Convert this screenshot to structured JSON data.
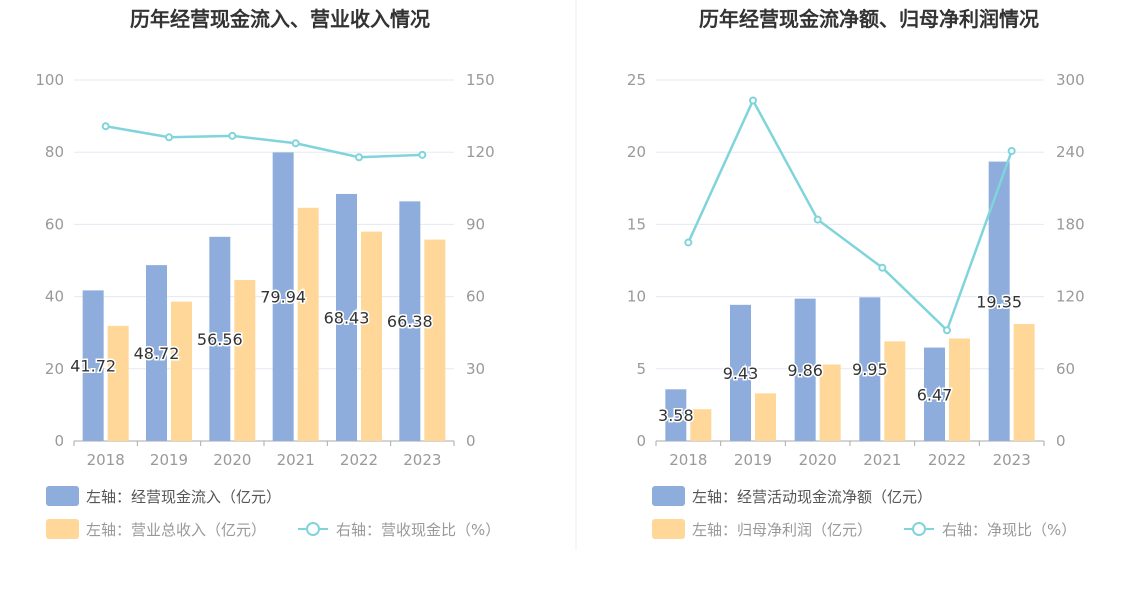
{
  "colors": {
    "bar_blue": "#8eaddc",
    "bar_orange": "#ffd899",
    "line": "#80d4db",
    "grid": "#e3e8f2",
    "axis": "#aaaaaa",
    "divider": "#eeeeee"
  },
  "chart_data": [
    {
      "type": "bar",
      "title": "历年经营现金流入、营业收入情况",
      "categories": [
        "2018",
        "2019",
        "2020",
        "2021",
        "2022",
        "2023"
      ],
      "left_axis": {
        "ticks": [
          "0",
          "20",
          "40",
          "60",
          "80",
          "100"
        ],
        "ylim": [
          0,
          100
        ]
      },
      "right_axis": {
        "ticks": [
          "0",
          "30",
          "60",
          "90",
          "120",
          "150"
        ],
        "ylim": [
          0,
          150
        ]
      },
      "series": [
        {
          "name": "左轴：经营现金流入（亿元）",
          "type": "bar",
          "axis": "left",
          "color_key": "bar_blue",
          "values": [
            41.72,
            48.72,
            56.56,
            79.94,
            68.43,
            66.38
          ],
          "labels": [
            "41.72",
            "48.72",
            "56.56",
            "79.94",
            "68.43",
            "66.38"
          ]
        },
        {
          "name": "左轴：营业总收入（亿元）",
          "type": "bar",
          "axis": "left",
          "color_key": "bar_orange",
          "values": [
            31.9,
            38.6,
            44.6,
            64.6,
            58.0,
            55.8
          ]
        },
        {
          "name": "右轴：营收现金比（%）",
          "type": "line",
          "axis": "right",
          "color_key": "line",
          "values": [
            130.8,
            126.2,
            126.8,
            123.7,
            117.9,
            118.9
          ]
        }
      ]
    },
    {
      "type": "bar",
      "title": "历年经营现金流净额、归母净利润情况",
      "categories": [
        "2018",
        "2019",
        "2020",
        "2021",
        "2022",
        "2023"
      ],
      "left_axis": {
        "ticks": [
          "0",
          "5",
          "10",
          "15",
          "20",
          "25"
        ],
        "ylim": [
          0,
          25
        ]
      },
      "right_axis": {
        "ticks": [
          "0",
          "60",
          "120",
          "180",
          "240",
          "300"
        ],
        "ylim": [
          0,
          300
        ]
      },
      "series": [
        {
          "name": "左轴：经营活动现金流净额（亿元）",
          "type": "bar",
          "axis": "left",
          "color_key": "bar_blue",
          "values": [
            3.58,
            9.43,
            9.86,
            9.95,
            6.47,
            19.35
          ],
          "labels": [
            "3.58",
            "9.43",
            "9.86",
            "9.95",
            "6.47",
            "19.35"
          ]
        },
        {
          "name": "左轴：归母净利润（亿元）",
          "type": "bar",
          "axis": "left",
          "color_key": "bar_orange",
          "values": [
            2.2,
            3.3,
            5.3,
            6.9,
            7.1,
            8.1
          ]
        },
        {
          "name": "右轴：净现比（%）",
          "type": "line",
          "axis": "right",
          "color_key": "line",
          "values": [
            165,
            283,
            184,
            144,
            92,
            241
          ]
        }
      ]
    }
  ]
}
